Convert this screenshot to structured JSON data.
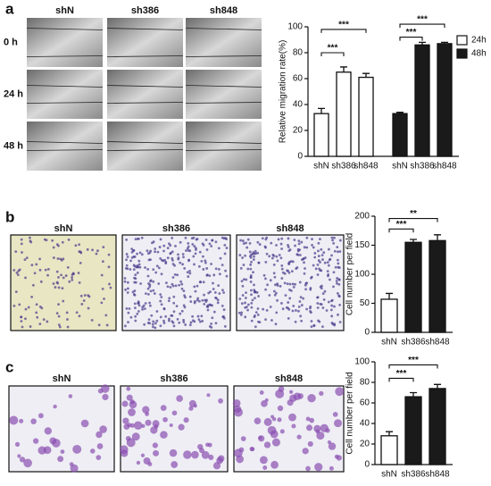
{
  "figure": {
    "panels": [
      {
        "label": "a",
        "columns": [
          "shN",
          "sh386",
          "sh848"
        ],
        "rows": [
          "0 h",
          "24 h",
          "48 h"
        ]
      },
      {
        "label": "b",
        "columns": [
          "shN",
          "sh386",
          "sh848"
        ]
      },
      {
        "label": "c",
        "columns": [
          "shN",
          "sh386",
          "sh848"
        ]
      }
    ]
  },
  "chart_data": [
    {
      "type": "bar",
      "ylabel": "Relative migration rate(%)",
      "categories": [
        "shN",
        "sh386",
        "sh848"
      ],
      "series": [
        {
          "name": "24h",
          "color": "#ffffff",
          "values": [
            33,
            65,
            61
          ],
          "errors": [
            4,
            4,
            3
          ]
        },
        {
          "name": "48h",
          "color": "#1a1a1a",
          "values": [
            33,
            86,
            87
          ],
          "errors": [
            1,
            2,
            1
          ]
        }
      ],
      "ylim": [
        0,
        100
      ],
      "yticks": [
        0,
        20,
        40,
        60,
        80,
        100
      ],
      "annotations": [
        "***",
        "***",
        "***",
        "***"
      ]
    },
    {
      "type": "bar",
      "ylabel": "Cell number per field",
      "categories": [
        "shN",
        "sh386",
        "sh848"
      ],
      "values": [
        57,
        155,
        158
      ],
      "errors": [
        10,
        5,
        10
      ],
      "colors": [
        "#ffffff",
        "#1a1a1a",
        "#1a1a1a"
      ],
      "ylim": [
        0,
        200
      ],
      "yticks": [
        0,
        50,
        100,
        150,
        200
      ],
      "annotations": [
        "***",
        "**"
      ]
    },
    {
      "type": "bar",
      "ylabel": "Cell number per field",
      "categories": [
        "shN",
        "sh386",
        "sh848"
      ],
      "values": [
        28,
        66,
        74
      ],
      "errors": [
        4,
        4,
        4
      ],
      "colors": [
        "#ffffff",
        "#1a1a1a",
        "#1a1a1a"
      ],
      "ylim": [
        0,
        100
      ],
      "yticks": [
        0,
        20,
        40,
        60,
        80,
        100
      ],
      "annotations": [
        "***",
        "***"
      ]
    }
  ]
}
